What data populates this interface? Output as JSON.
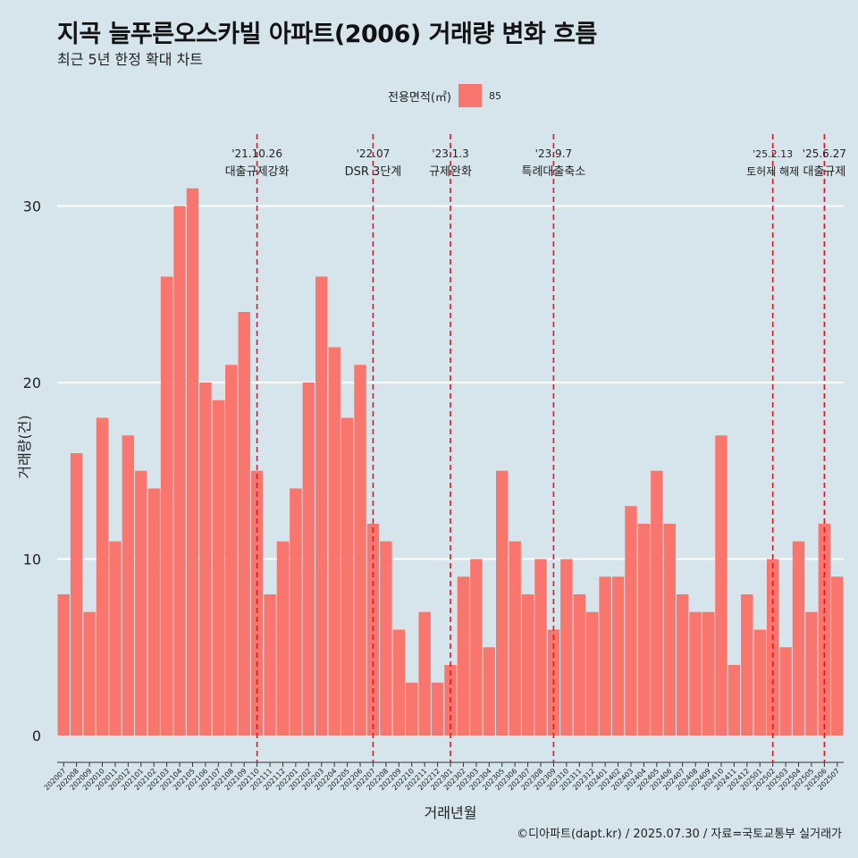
{
  "header": {
    "title": "지곡 늘푸른오스카빌 아파트(2006) 거래량 변화 흐름",
    "subtitle": "최근 5년 한정 확대 차트"
  },
  "legend": {
    "title": "전용면적(㎡)",
    "label": "85",
    "color": "#f8766d"
  },
  "footer": {
    "caption": "©디아파트(dapt.kr) / 2025.07.30 / 자료=국토교통부 실거래가"
  },
  "chart_data": {
    "type": "bar",
    "title": "지곡 늘푸른오스카빌 아파트(2006) 거래량 변화 흐름",
    "xlabel": "거래년월",
    "ylabel": "거래량(건)",
    "ylim": [
      0,
      32
    ],
    "yticks": [
      0,
      10,
      20,
      30
    ],
    "grid": true,
    "legend_position": "top",
    "categories": [
      "202007",
      "202008",
      "202009",
      "202010",
      "202011",
      "202012",
      "202101",
      "202102",
      "202103",
      "202104",
      "202105",
      "202106",
      "202107",
      "202108",
      "202109",
      "202110",
      "202111",
      "202112",
      "202201",
      "202202",
      "202203",
      "202204",
      "202205",
      "202206",
      "202207",
      "202208",
      "202209",
      "202210",
      "202211",
      "202212",
      "202301",
      "202302",
      "202303",
      "202304",
      "202305",
      "202306",
      "202307",
      "202308",
      "202309",
      "202310",
      "202311",
      "202312",
      "202401",
      "202402",
      "202403",
      "202404",
      "202405",
      "202406",
      "202407",
      "202408",
      "202409",
      "202410",
      "202411",
      "202412",
      "202501",
      "202502",
      "202503",
      "202504",
      "202505",
      "202506",
      "202507"
    ],
    "series": [
      {
        "name": "85",
        "color": "#f8766d",
        "values": [
          8,
          16,
          7,
          18,
          11,
          17,
          15,
          14,
          26,
          30,
          31,
          20,
          19,
          21,
          24,
          15,
          8,
          11,
          14,
          20,
          26,
          22,
          18,
          21,
          12,
          11,
          6,
          3,
          7,
          3,
          4,
          9,
          10,
          5,
          15,
          11,
          8,
          10,
          6,
          10,
          8,
          7,
          9,
          9,
          13,
          12,
          15,
          12,
          8,
          7,
          7,
          17,
          4,
          8,
          6,
          10,
          5,
          11,
          7,
          12,
          9
        ]
      }
    ],
    "annotations": [
      {
        "date": "'21.10.26",
        "label": "대출규제강화",
        "category": "202110"
      },
      {
        "date": "'22.07",
        "label": "DSR 3단계",
        "category": "202207"
      },
      {
        "date": "'23.1.3",
        "label": "규제완화",
        "category": "202301"
      },
      {
        "date": "'23.9.7",
        "label": "특례대출축소",
        "category": "202309"
      },
      {
        "date": "'25.2.13",
        "label": "토허제 해제",
        "category": "202502"
      },
      {
        "date": "'25.6.27",
        "label": "대출규제",
        "category": "202506"
      }
    ]
  }
}
